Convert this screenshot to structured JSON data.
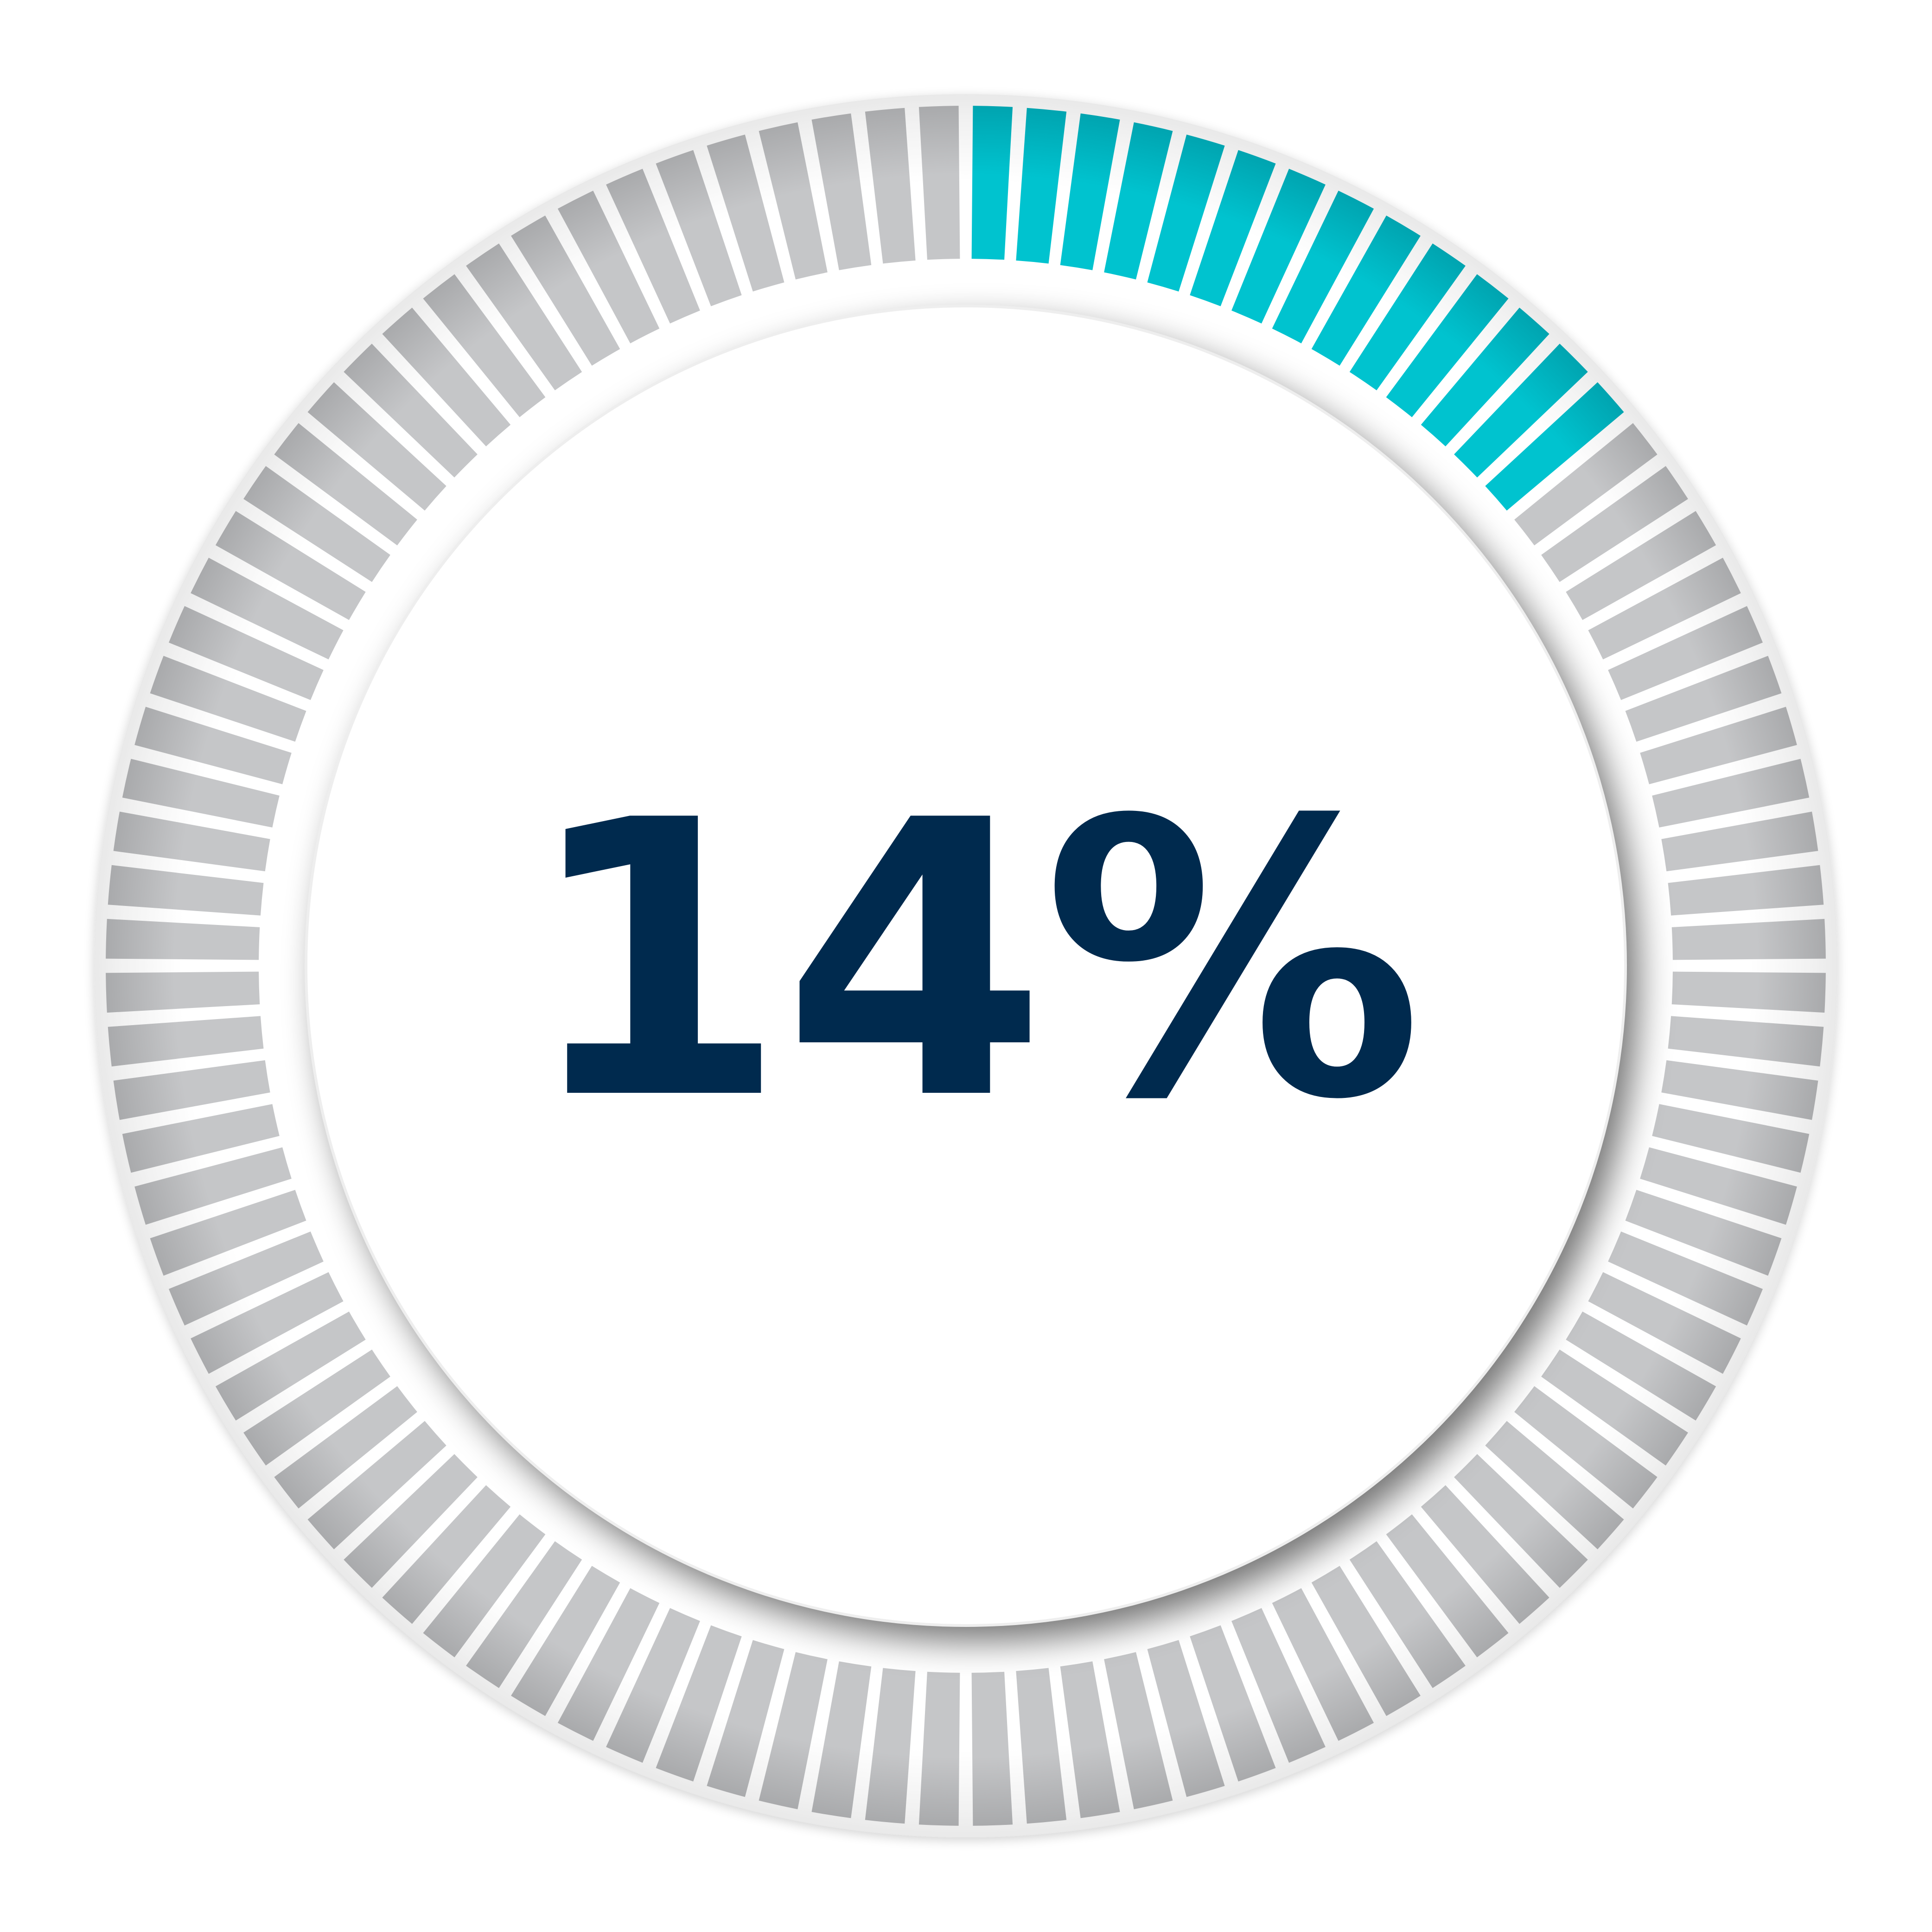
{
  "progress": {
    "value_percent": 14,
    "label": "14%",
    "segment_count": 100,
    "filled_segments": 14,
    "direction": "clockwise-from-top"
  },
  "colors": {
    "background": "#ffffff",
    "ring_base": "#f4f4f4",
    "ring_edge": "#e6e6e6",
    "segment_empty": "#c5c6c8",
    "segment_empty_top": "#a9aaac",
    "segment_filled": "#00c3cf",
    "segment_filled_top": "#00a4b0",
    "inner_disc": "#ffffff",
    "label_text": "#002a4e"
  },
  "icons": {
    "progress_ring": "circular-progress-ring-icon"
  }
}
